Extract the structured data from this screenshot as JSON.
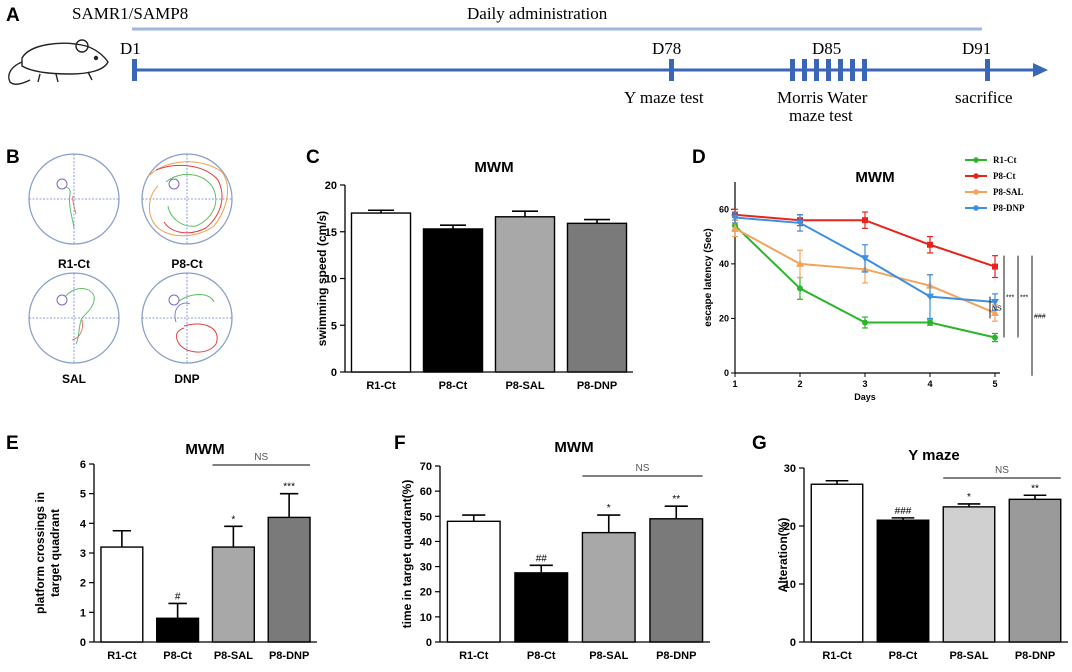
{
  "figure": {
    "panel_letters": [
      "A",
      "B",
      "C",
      "D",
      "E",
      "F",
      "G"
    ],
    "colors": {
      "timeline": "#3a66b8",
      "admin_bar": "#9db7de",
      "R1-Ct": "#2ab52a",
      "P8-Ct": "#e8231b",
      "P8-SAL": "#f2a45c",
      "P8-DNP": "#3d8fe0"
    }
  },
  "timeline": {
    "strain_label": "SAMR1/SAMP8",
    "admin_label": "Daily administration",
    "days": [
      "D1",
      "D78",
      "D85",
      "D91"
    ],
    "events": [
      "Y maze test",
      "Morris Water",
      "maze test",
      "sacrifice"
    ]
  },
  "traces": {
    "labels": [
      "R1-Ct",
      "P8-Ct",
      "SAL",
      "DNP"
    ]
  },
  "chart_data": [
    {
      "panel": "C",
      "type": "bar",
      "title": "MWM",
      "ylabel": "swimming speed (cm/s)",
      "categories": [
        "R1-Ct",
        "P8-Ct",
        "P8-SAL",
        "P8-DNP"
      ],
      "values": [
        17.0,
        15.3,
        16.6,
        15.9
      ],
      "errors": [
        0.3,
        0.4,
        0.6,
        0.4
      ],
      "fills": [
        "#ffffff",
        "#000000",
        "#a8a8a8",
        "#7a7a7a"
      ],
      "ylim": [
        0,
        20
      ],
      "yticks": [
        "0",
        "5",
        "10",
        "15",
        "20"
      ],
      "annotations": []
    },
    {
      "panel": "D",
      "type": "line",
      "title": "MWM",
      "xlabel": "Days",
      "ylabel": "escape latency (Sec)",
      "x": [
        1,
        2,
        3,
        4,
        5
      ],
      "xticks": [
        "1",
        "2",
        "3",
        "4",
        "5"
      ],
      "ylim": [
        0,
        70
      ],
      "yticks": [
        "0",
        "20",
        "40",
        "60"
      ],
      "series": [
        {
          "name": "R1-Ct",
          "values": [
            54,
            31,
            18.5,
            18.5,
            13
          ],
          "errors": [
            2,
            4,
            2,
            1,
            1.5
          ]
        },
        {
          "name": "P8-Ct",
          "values": [
            58,
            56,
            56,
            47,
            39
          ],
          "errors": [
            2,
            2,
            3,
            3,
            4
          ]
        },
        {
          "name": "P8-SAL",
          "values": [
            53,
            40,
            38,
            32,
            22
          ],
          "errors": [
            3,
            5,
            5,
            4,
            3
          ]
        },
        {
          "name": "P8-DNP",
          "values": [
            57,
            55,
            42,
            28,
            26
          ],
          "errors": [
            2,
            3,
            5,
            8,
            3
          ]
        }
      ],
      "sig_labels": [
        "NS",
        "***",
        "***",
        "###"
      ]
    },
    {
      "panel": "E",
      "type": "bar",
      "title": "MWM",
      "ylabel": "platform crossings in target quadrant",
      "categories": [
        "R1-Ct",
        "P8-Ct",
        "P8-SAL",
        "P8-DNP"
      ],
      "values": [
        3.2,
        0.8,
        3.2,
        4.2
      ],
      "errors": [
        0.55,
        0.5,
        0.7,
        0.8
      ],
      "fills": [
        "#ffffff",
        "#000000",
        "#a8a8a8",
        "#7a7a7a"
      ],
      "ylim": [
        0,
        6
      ],
      "yticks": [
        "0",
        "1",
        "2",
        "3",
        "4",
        "5",
        "6"
      ],
      "annotations": [
        "",
        "#",
        "*",
        "***"
      ],
      "ns_label": "NS"
    },
    {
      "panel": "F",
      "type": "bar",
      "title": "MWM",
      "ylabel": "time in target quadrant(%)",
      "categories": [
        "R1-Ct",
        "P8-Ct",
        "P8-SAL",
        "P8-DNP"
      ],
      "values": [
        48,
        27.5,
        43.5,
        49
      ],
      "errors": [
        2.5,
        3,
        7,
        5
      ],
      "fills": [
        "#ffffff",
        "#000000",
        "#a8a8a8",
        "#7a7a7a"
      ],
      "ylim": [
        0,
        70
      ],
      "yticks": [
        "0",
        "10",
        "20",
        "30",
        "40",
        "50",
        "60",
        "70"
      ],
      "annotations": [
        "",
        "##",
        "*",
        "**"
      ],
      "ns_label": "NS"
    },
    {
      "panel": "G",
      "type": "bar",
      "title": "Y maze",
      "ylabel": "Alteration(%)",
      "categories": [
        "R1-Ct",
        "P8-Ct",
        "P8-SAL",
        "P8-DNP"
      ],
      "values": [
        27.2,
        21.0,
        23.3,
        24.6
      ],
      "errors": [
        0.6,
        0.4,
        0.5,
        0.7
      ],
      "fills": [
        "#ffffff",
        "#000000",
        "#d0d0d0",
        "#9a9a9a"
      ],
      "ylim": [
        0,
        30
      ],
      "yticks": [
        "0",
        "10",
        "20",
        "30"
      ],
      "annotations": [
        "",
        "###",
        "*",
        "**"
      ],
      "ns_label": "NS"
    }
  ]
}
